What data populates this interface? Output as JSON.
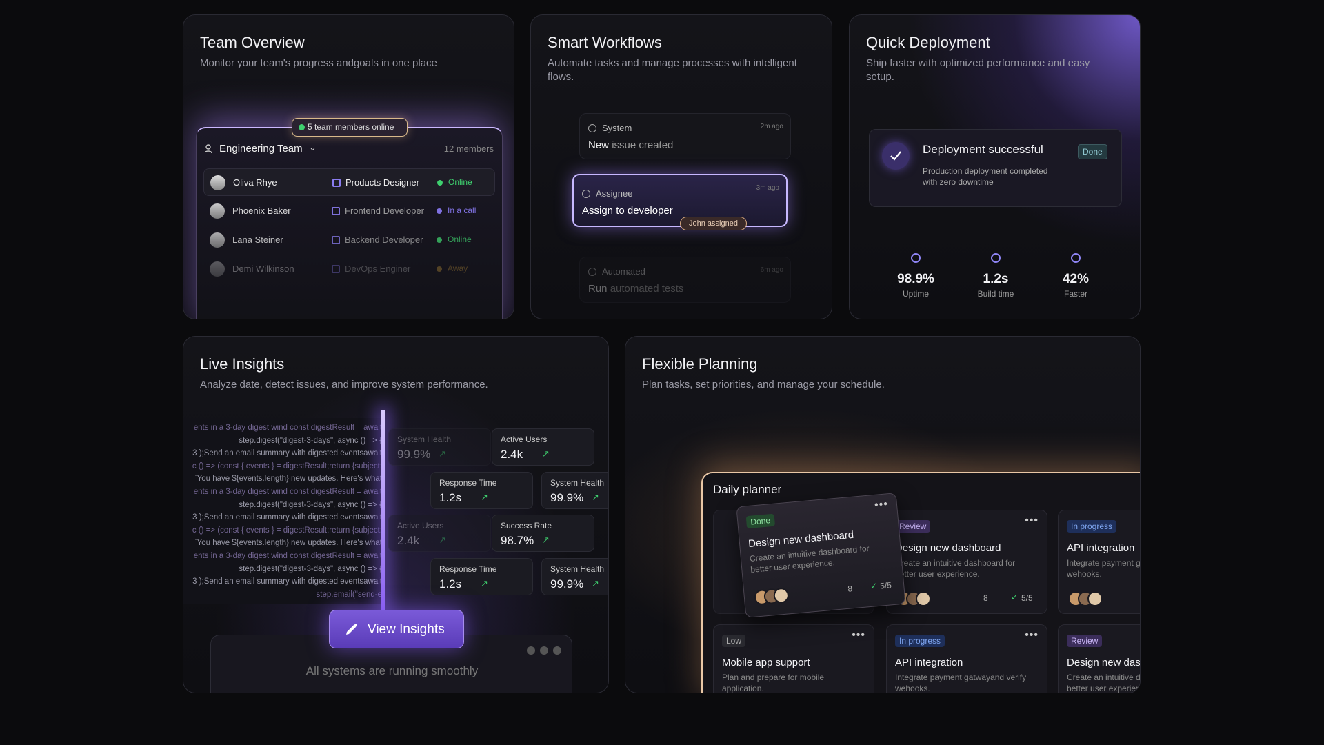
{
  "team_overview": {
    "title": "Team Overview",
    "subtitle": "Monitor your team's progress andgoals in one place",
    "badge": "5 team members online",
    "team": "Engineering Team",
    "member_count": "12 members",
    "members": [
      {
        "name": "Oliva Rhye",
        "role": "Products Designer",
        "status": "Online"
      },
      {
        "name": "Phoenix Baker",
        "role": "Frontend Developer",
        "status": "In a call"
      },
      {
        "name": "Lana Steiner",
        "role": "Backend Developer",
        "status": "Online"
      },
      {
        "name": "Demi Wilkinson",
        "role": "DevOps Enginer",
        "status": "Away"
      }
    ]
  },
  "smart_workflows": {
    "title": "Smart Workflows",
    "subtitle": "Automate tasks and manage processes with intelligent flows.",
    "steps": [
      {
        "source": "System",
        "time": "2m ago",
        "verb": "New",
        "text": "issue created"
      },
      {
        "source": "Assignee",
        "time": "3m ago",
        "text": "Assign to developer"
      },
      {
        "source": "Automated",
        "time": "6m ago",
        "verb": "Run",
        "text": "automated tests"
      }
    ],
    "assigned_tag": "John assigned"
  },
  "quick_deployment": {
    "title": "Quick Deployment",
    "subtitle": "Ship faster with optimized performance and easy setup.",
    "status": {
      "title": "Deployment successful",
      "description": "Production deployment completed with zero downtime",
      "badge": "Done"
    },
    "stats": [
      {
        "value": "98.9%",
        "label": "Uptime"
      },
      {
        "value": "1.2s",
        "label": "Build time"
      },
      {
        "value": "42%",
        "label": "Faster"
      }
    ]
  },
  "live_insights": {
    "title": "Live Insights",
    "subtitle": "Analyze date, detect issues, and improve system performance.",
    "code_lines": [
      "ents in a 3-day digest wind const digestResult = await",
      "step.digest(\"digest-3-days\", async () => {",
      "3 );Send an email summary with digested eventsawait",
      "c () => (const { events } = digestResult;return {subject:",
      "`You have ${events.length} new updates. Here's what",
      "ents in a 3-day digest wind const digestResult = await",
      "step.digest(\"digest-3-days\", async () => {",
      "3 );Send an email summary with digested eventsawait",
      "c () => (const { events } = digestResult;return {subject:",
      "`You have ${events.length} new updates. Here's what",
      "ents in a 3-day digest wind const digestResult = await",
      "step.digest(\"digest-3-days\", async () => {",
      "3 );Send an email summary with digested eventsawait",
      "step.email(\"send-e"
    ],
    "metrics": [
      {
        "label": "System Health",
        "value": "99.9%"
      },
      {
        "label": "Active Users",
        "value": "2.4k"
      },
      {
        "label": "Response Time",
        "value": "1.2s"
      },
      {
        "label": "System Health",
        "value": "99.9%"
      },
      {
        "label": "Active Users",
        "value": "2.4k"
      },
      {
        "label": "Success Rate",
        "value": "98.7%"
      },
      {
        "label": "Response Time",
        "value": "1.2s"
      },
      {
        "label": "System Health",
        "value": "99.9%"
      }
    ],
    "button": "View Insights",
    "status": "All systems are running smoothly"
  },
  "flexible_planning": {
    "title": "Flexible Planning",
    "subtitle": "Plan tasks, set priorities, and manage your schedule.",
    "planner_title": "Daily planner",
    "tasks": [
      {
        "tag": "Done",
        "title": "Design new dashboard",
        "description": "Create an intuitive dashboard for better user experience.",
        "comments": "8",
        "progress": "5/5"
      },
      {
        "tag": "Review",
        "title": "Design new dashboard",
        "description": "Create an intuitive dashboard for better user experience.",
        "comments": "8",
        "progress": "5/5"
      },
      {
        "tag": "In progress",
        "title": "API integration",
        "description": "Integrate payment gatwayand verify wehooks."
      },
      {
        "tag": "Low",
        "title": "Mobile app support",
        "description": "Plan and prepare for mobile application."
      },
      {
        "tag": "In progress",
        "title": "API integration",
        "description": "Integrate payment gatwayand verify wehooks."
      },
      {
        "tag": "Review",
        "title": "Design new dashboard",
        "description": "Create an intuitive dashboard for better user experience."
      }
    ]
  }
}
